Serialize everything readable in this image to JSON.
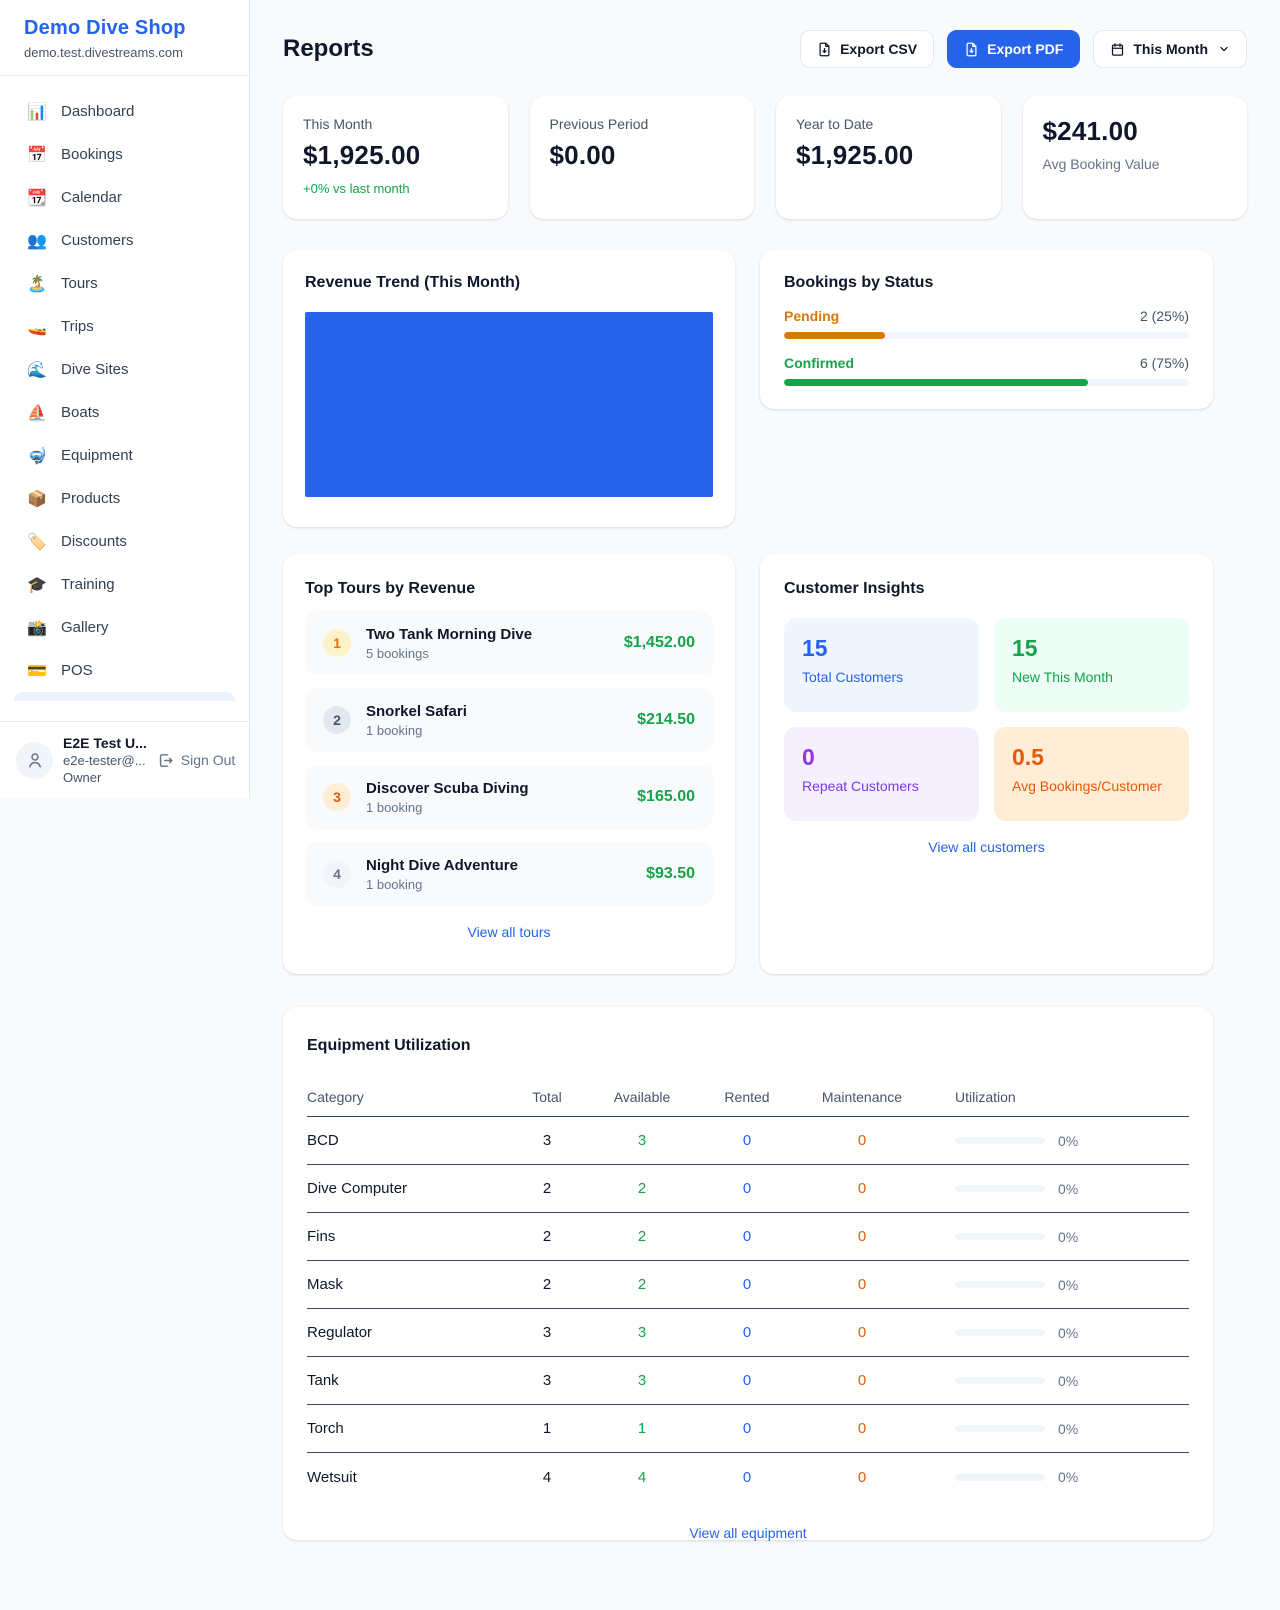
{
  "colors": {
    "accent_blue": "#2563eb",
    "green": "#16a34a",
    "amber": "#d97706",
    "orange": "#ea580c",
    "purple": "#9333ea",
    "page_bg": "#f8fafc",
    "border": "#e2e8f0"
  },
  "sidebar": {
    "title": "Demo Dive Shop",
    "subtitle": "demo.test.divestreams.com",
    "items": [
      {
        "icon": "📊",
        "label": "Dashboard"
      },
      {
        "icon": "📅",
        "label": "Bookings"
      },
      {
        "icon": "📆",
        "label": "Calendar"
      },
      {
        "icon": "👥",
        "label": "Customers"
      },
      {
        "icon": "🏝️",
        "label": "Tours"
      },
      {
        "icon": "🚤",
        "label": "Trips"
      },
      {
        "icon": "🌊",
        "label": "Dive Sites"
      },
      {
        "icon": "⛵",
        "label": "Boats"
      },
      {
        "icon": "🤿",
        "label": "Equipment"
      },
      {
        "icon": "📦",
        "label": "Products"
      },
      {
        "icon": "🏷️",
        "label": "Discounts"
      },
      {
        "icon": "🎓",
        "label": "Training"
      },
      {
        "icon": "📸",
        "label": "Gallery"
      },
      {
        "icon": "💳",
        "label": "POS"
      }
    ],
    "user": {
      "name": "E2E Test U...",
      "email": "e2e-tester@...",
      "role": "Owner",
      "sign_out": "Sign Out"
    }
  },
  "header": {
    "title": "Reports",
    "export_csv": "Export CSV",
    "export_pdf": "Export PDF",
    "period": "This Month"
  },
  "stats": {
    "this_month": {
      "label": "This Month",
      "value": "$1,925.00",
      "delta": "+0% vs last month"
    },
    "previous_period": {
      "label": "Previous Period",
      "value": "$0.00"
    },
    "year_to_date": {
      "label": "Year to Date",
      "value": "$1,925.00"
    },
    "avg_booking": {
      "label": "Avg Booking Value",
      "value": "$241.00"
    }
  },
  "revenue_trend": {
    "title": "Revenue Trend (This Month)",
    "chart_data": {
      "type": "bar",
      "note": "single full-width bar filling plot area",
      "values": [
        1925
      ],
      "bar_color": "#2563eb"
    }
  },
  "bookings_by_status": {
    "title": "Bookings by Status",
    "rows": [
      {
        "label": "Pending",
        "value": "2 (25%)",
        "pct": 25,
        "color": "#d97706"
      },
      {
        "label": "Confirmed",
        "value": "6 (75%)",
        "pct": 75,
        "color": "#16a34a"
      }
    ]
  },
  "top_tours": {
    "title": "Top Tours by Revenue",
    "rows": [
      {
        "rank": "1",
        "name": "Two Tank Morning Dive",
        "bookings": "5 bookings",
        "amount": "$1,452.00"
      },
      {
        "rank": "2",
        "name": "Snorkel Safari",
        "bookings": "1 booking",
        "amount": "$214.50"
      },
      {
        "rank": "3",
        "name": "Discover Scuba Diving",
        "bookings": "1 booking",
        "amount": "$165.00"
      },
      {
        "rank": "4",
        "name": "Night Dive Adventure",
        "bookings": "1 booking",
        "amount": "$93.50"
      }
    ],
    "link": "View all tours"
  },
  "customer_insights": {
    "title": "Customer Insights",
    "tiles": [
      {
        "value": "15",
        "label": "Total Customers",
        "color": "#2563eb"
      },
      {
        "value": "15",
        "label": "New This Month",
        "color": "#16a34a"
      },
      {
        "value": "0",
        "label": "Repeat Customers",
        "color": "#9333ea"
      },
      {
        "value": "0.5",
        "label": "Avg Bookings/Customer",
        "color": "#ea580c"
      }
    ],
    "link": "View all customers"
  },
  "equipment": {
    "title": "Equipment Utilization",
    "columns": [
      "Category",
      "Total",
      "Available",
      "Rented",
      "Maintenance",
      "Utilization"
    ],
    "rows": [
      {
        "category": "BCD",
        "total": "3",
        "available": "3",
        "rented": "0",
        "maintenance": "0",
        "utilization": "0%",
        "pct": 0
      },
      {
        "category": "Dive Computer",
        "total": "2",
        "available": "2",
        "rented": "0",
        "maintenance": "0",
        "utilization": "0%",
        "pct": 0
      },
      {
        "category": "Fins",
        "total": "2",
        "available": "2",
        "rented": "0",
        "maintenance": "0",
        "utilization": "0%",
        "pct": 0
      },
      {
        "category": "Mask",
        "total": "2",
        "available": "2",
        "rented": "0",
        "maintenance": "0",
        "utilization": "0%",
        "pct": 0
      },
      {
        "category": "Regulator",
        "total": "3",
        "available": "3",
        "rented": "0",
        "maintenance": "0",
        "utilization": "0%",
        "pct": 0
      },
      {
        "category": "Tank",
        "total": "3",
        "available": "3",
        "rented": "0",
        "maintenance": "0",
        "utilization": "0%",
        "pct": 0
      },
      {
        "category": "Torch",
        "total": "1",
        "available": "1",
        "rented": "0",
        "maintenance": "0",
        "utilization": "0%",
        "pct": 0
      },
      {
        "category": "Wetsuit",
        "total": "4",
        "available": "4",
        "rented": "0",
        "maintenance": "0",
        "utilization": "0%",
        "pct": 0
      }
    ],
    "link": "View all equipment"
  }
}
